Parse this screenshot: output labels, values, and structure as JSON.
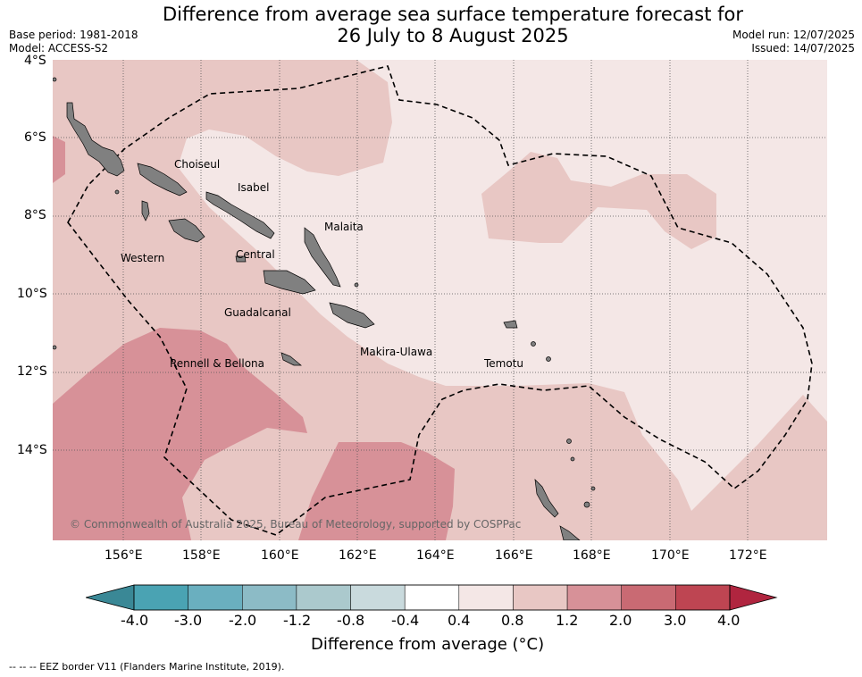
{
  "header": {
    "title_line1": "Difference from average sea surface temperature forecast for",
    "title_line2": "26 July to 8 August 2025",
    "base_period": "Base period: 1981-2018",
    "model": "Model: ACCESS-S2",
    "model_run": "Model run: 12/07/2025",
    "issued": "Issued: 14/07/2025"
  },
  "map": {
    "lat_labels": [
      "4°S",
      "6°S",
      "8°S",
      "10°S",
      "12°S",
      "14°S"
    ],
    "lon_labels": [
      "156°E",
      "158°E",
      "160°E",
      "162°E",
      "164°E",
      "166°E",
      "168°E",
      "170°E",
      "172°E"
    ],
    "place_labels": {
      "choiseul": "Choiseul",
      "isabel": "Isabel",
      "malaita": "Malaita",
      "western": "Western",
      "central": "Central",
      "guadalcanal": "Guadalcanal",
      "makira_ulawa": "Makira-Ulawa",
      "temotu": "Temotu",
      "rennell_bellona": "Rennell & Bellona"
    },
    "copyright": "© Commonwealth of Australia 2025, Bureau of Meteorology, supported by COSPPac",
    "land_color": "#808080",
    "eez_line_style": "dashed"
  },
  "colorbar": {
    "ticks": [
      "-4.0",
      "-3.0",
      "-2.0",
      "-1.2",
      "-0.8",
      "-0.4",
      "0.4",
      "0.8",
      "1.2",
      "2.0",
      "3.0",
      "4.0"
    ],
    "colors": [
      "#3a8896",
      "#4aa3b3",
      "#6aafbf",
      "#8cbbc6",
      "#abc9cd",
      "#c9dadd",
      "#ffffff",
      "#f4e7e6",
      "#e8c7c4",
      "#d79198",
      "#c96a73",
      "#be4552"
    ],
    "low_extension_color": "#3a8896",
    "high_extension_color": "#b0253f",
    "label": "Difference from average (°C)"
  },
  "footer": {
    "legend_note": "-- -- -- EEZ border V11 (Flanders Marine Institute, 2019)."
  }
}
